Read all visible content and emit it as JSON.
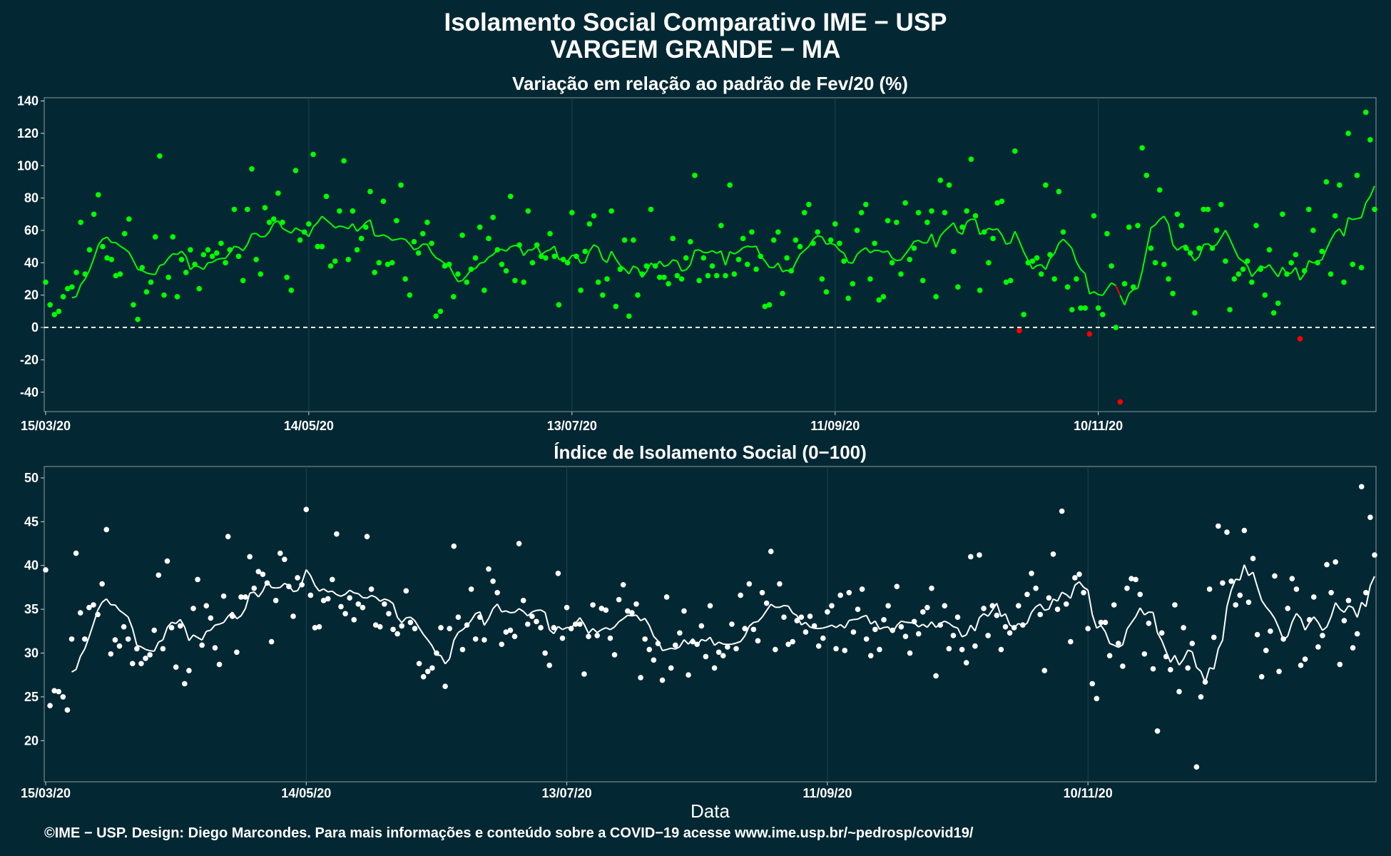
{
  "title": "Isolamento Social Comparativo IME − USP",
  "subtitle": "VARGEM GRANDE − MA",
  "xlabel": "Data",
  "credit": "©IME − USP. Design: Diego Marcondes. Para mais informações e conteúdo sobre a COVID−19 acesse www.ime.usp.br/~pedrosp/covid19/",
  "colors": {
    "background": "#042833",
    "positive": "#00ff00",
    "negative": "#ff0000",
    "index": "#ffffff",
    "frame": "#8a9aa0"
  },
  "chart_data": [
    {
      "type": "scatter",
      "title": "Variação em relação ao padrão de Fev/20 (%)",
      "x_start": "15/03/20",
      "x_ticks": [
        "15/03/20",
        "14/05/20",
        "13/07/20",
        "11/09/20",
        "10/11/20"
      ],
      "x_tick_days": [
        0,
        60,
        120,
        180,
        240
      ],
      "ylim": [
        -52,
        142
      ],
      "y_ticks": [
        -40,
        -20,
        0,
        20,
        40,
        60,
        80,
        100,
        120,
        140
      ],
      "reference_line": 0,
      "has_moving_average": true,
      "values": [
        28,
        14,
        8,
        10,
        19,
        24,
        25,
        34,
        65,
        33,
        48,
        70,
        82,
        50,
        43,
        42,
        32,
        33,
        58,
        67,
        14,
        5,
        37,
        22,
        28,
        56,
        106,
        20,
        31,
        56,
        19,
        42,
        34,
        48,
        39,
        24,
        45,
        48,
        44,
        46,
        52,
        40,
        48,
        73,
        44,
        29,
        73,
        98,
        42,
        33,
        74,
        65,
        67,
        83,
        65,
        31,
        23,
        97,
        54,
        59,
        64,
        107,
        50,
        50,
        81,
        38,
        41,
        72,
        103,
        42,
        72,
        48,
        55,
        62,
        84,
        34,
        40,
        78,
        39,
        40,
        66,
        88,
        30,
        20,
        53,
        46,
        58,
        65,
        52,
        7,
        10,
        38,
        39,
        19,
        33,
        57,
        28,
        36,
        43,
        62,
        23,
        55,
        68,
        48,
        39,
        35,
        81,
        29,
        51,
        28,
        72,
        40,
        51,
        44,
        43,
        58,
        44,
        14,
        42,
        40,
        71,
        44,
        23,
        47,
        64,
        69,
        28,
        20,
        30,
        72,
        13,
        36,
        54,
        7,
        54,
        20,
        33,
        38,
        73,
        38,
        31,
        31,
        27,
        55,
        32,
        30,
        43,
        53,
        94,
        29,
        43,
        32,
        38,
        32,
        63,
        32,
        88,
        33,
        42,
        55,
        39,
        59,
        36,
        44,
        13,
        14,
        54,
        59,
        21,
        43,
        35,
        54,
        50,
        71,
        76,
        52,
        59,
        30,
        22,
        54,
        64,
        52,
        41,
        18,
        27,
        60,
        71,
        76,
        30,
        52,
        17,
        19,
        66,
        40,
        65,
        33,
        77,
        42,
        49,
        71,
        29,
        65,
        72,
        19,
        91,
        71,
        88,
        47,
        25,
        62,
        72,
        104,
        69,
        23,
        59,
        40,
        55,
        77,
        78,
        28,
        29,
        109,
        -2,
        8,
        40,
        41,
        43,
        33,
        88,
        45,
        30,
        84,
        59,
        25,
        11,
        30,
        12,
        12,
        -4,
        69,
        12,
        8,
        58,
        38,
        0,
        -46,
        27,
        62,
        25,
        63,
        111,
        94,
        49,
        40,
        85,
        39,
        30,
        21,
        70,
        63,
        49,
        46,
        9,
        49,
        73,
        73,
        49,
        60,
        76,
        41,
        11,
        30,
        33,
        36,
        41,
        28,
        63,
        36,
        20,
        48,
        9,
        15,
        70,
        33,
        40,
        45,
        -7,
        35,
        73,
        60,
        40,
        47,
        90,
        33,
        69,
        88,
        28,
        120,
        39,
        94,
        37,
        133,
        116,
        73
      ]
    },
    {
      "type": "scatter",
      "title": "Índice de Isolamento Social (0−100)",
      "x_start": "15/03/20",
      "x_ticks": [
        "15/03/20",
        "14/05/20",
        "13/07/20",
        "11/09/20",
        "10/11/20"
      ],
      "x_tick_days": [
        0,
        60,
        120,
        180,
        240
      ],
      "ylim": [
        15.3,
        51.3
      ],
      "y_ticks": [
        20,
        25,
        30,
        35,
        40,
        45,
        50
      ],
      "has_moving_average": true,
      "values": [
        39.5,
        24,
        25.7,
        25.6,
        25,
        23.5,
        31.6,
        41.4,
        34.6,
        31.6,
        35.2,
        35.5,
        34.4,
        37.9,
        44.1,
        29.9,
        31.5,
        30.8,
        33,
        31.6,
        28.8,
        30.5,
        28.8,
        29.4,
        29.8,
        32.6,
        38.9,
        30.5,
        40.5,
        32.9,
        28.4,
        33.1,
        26.5,
        28,
        35.1,
        38.4,
        30.9,
        35.4,
        34,
        30.6,
        28.7,
        36.5,
        43.3,
        34.2,
        30.1,
        36.4,
        36.4,
        41,
        37.4,
        39.3,
        39,
        38,
        31.3,
        36,
        41.4,
        40.7,
        37.6,
        34.2,
        38.6,
        37.8,
        46.4,
        36.6,
        32.9,
        33,
        36,
        36.2,
        38.4,
        43.6,
        35.3,
        34.5,
        36.3,
        33.8,
        35.6,
        35.2,
        43.3,
        37.3,
        33.2,
        33,
        35.6,
        34.5,
        32.7,
        32.2,
        33.1,
        37.1,
        33.5,
        32.8,
        28.8,
        27.3,
        27.9,
        28.3,
        30,
        32.9,
        26.2,
        32.8,
        42.2,
        34.1,
        30.4,
        33.2,
        37.3,
        31.6,
        34.1,
        31.5,
        39.6,
        38.2,
        36.9,
        31,
        32.4,
        32.6,
        31.9,
        42.5,
        36,
        33.3,
        34.2,
        33.6,
        32.9,
        30,
        28.6,
        32.9,
        39.1,
        31.7,
        35.2,
        32.8,
        33.3,
        33.3,
        27.6,
        31.9,
        35.5,
        32,
        35.1,
        34.9,
        31.7,
        29.8,
        36.1,
        37.8,
        34.8,
        34.6,
        35.6,
        27.2,
        31.6,
        30.4,
        29.2,
        31.1,
        26.9,
        36.4,
        28.3,
        30.9,
        32.3,
        34.8,
        27.5,
        31.3,
        31,
        33.1,
        29.6,
        35.4,
        28.3,
        30.1,
        29.7,
        30.7,
        33.3,
        30.5,
        36.6,
        32.8,
        37.9,
        32.7,
        31.4,
        36.9,
        35.7,
        41.6,
        30.4,
        37.9,
        34.1,
        31,
        31.3,
        33.7,
        34.1,
        32.4,
        34.2,
        33.1,
        30.8,
        31.7,
        34.7,
        35.4,
        30.5,
        36.6,
        30.3,
        36.9,
        32.4,
        35,
        37.3,
        31.6,
        29.7,
        32.7,
        30.4,
        33.8,
        35.4,
        32.6,
        37.6,
        33,
        31.9,
        30,
        33.6,
        32.2,
        34.7,
        35.2,
        37.4,
        27.4,
        33.2,
        35.4,
        30.5,
        32,
        34.1,
        30.4,
        28.9,
        41,
        30.8,
        41.2,
        35.1,
        32,
        35.4,
        34.3,
        30.4,
        33,
        32.3,
        32.9,
        35.4,
        33.2,
        36.7,
        39.1,
        37.4,
        34.4,
        28,
        36.3,
        41.3,
        35,
        46.2,
        35.6,
        31.3,
        38.6,
        39,
        36.9,
        32.8,
        26.5,
        24.8,
        33.5,
        33.5,
        29.7,
        35.5,
        31.1,
        28.5,
        37.4,
        38.5,
        38.4,
        36.7,
        29.9,
        33.4,
        28.2,
        21.1,
        32.3,
        29.6,
        28.1,
        35.5,
        25.6,
        32.9,
        28.3,
        31.1,
        17,
        25,
        26.7,
        37.3,
        31.8,
        44.5,
        38,
        43.8,
        38.2,
        35.5,
        36.6,
        44,
        35.8,
        40.8,
        32.1,
        27.3,
        30.3,
        32.5,
        38.8,
        27.9,
        31.6,
        35.1,
        38.5,
        37.3,
        28.6,
        29.3,
        33.8,
        36.4,
        30.7,
        32,
        40.1,
        36.9,
        40.4,
        28.7,
        33.7,
        36,
        30.6,
        32.2,
        49,
        36.9,
        45.5,
        41.2
      ]
    }
  ]
}
